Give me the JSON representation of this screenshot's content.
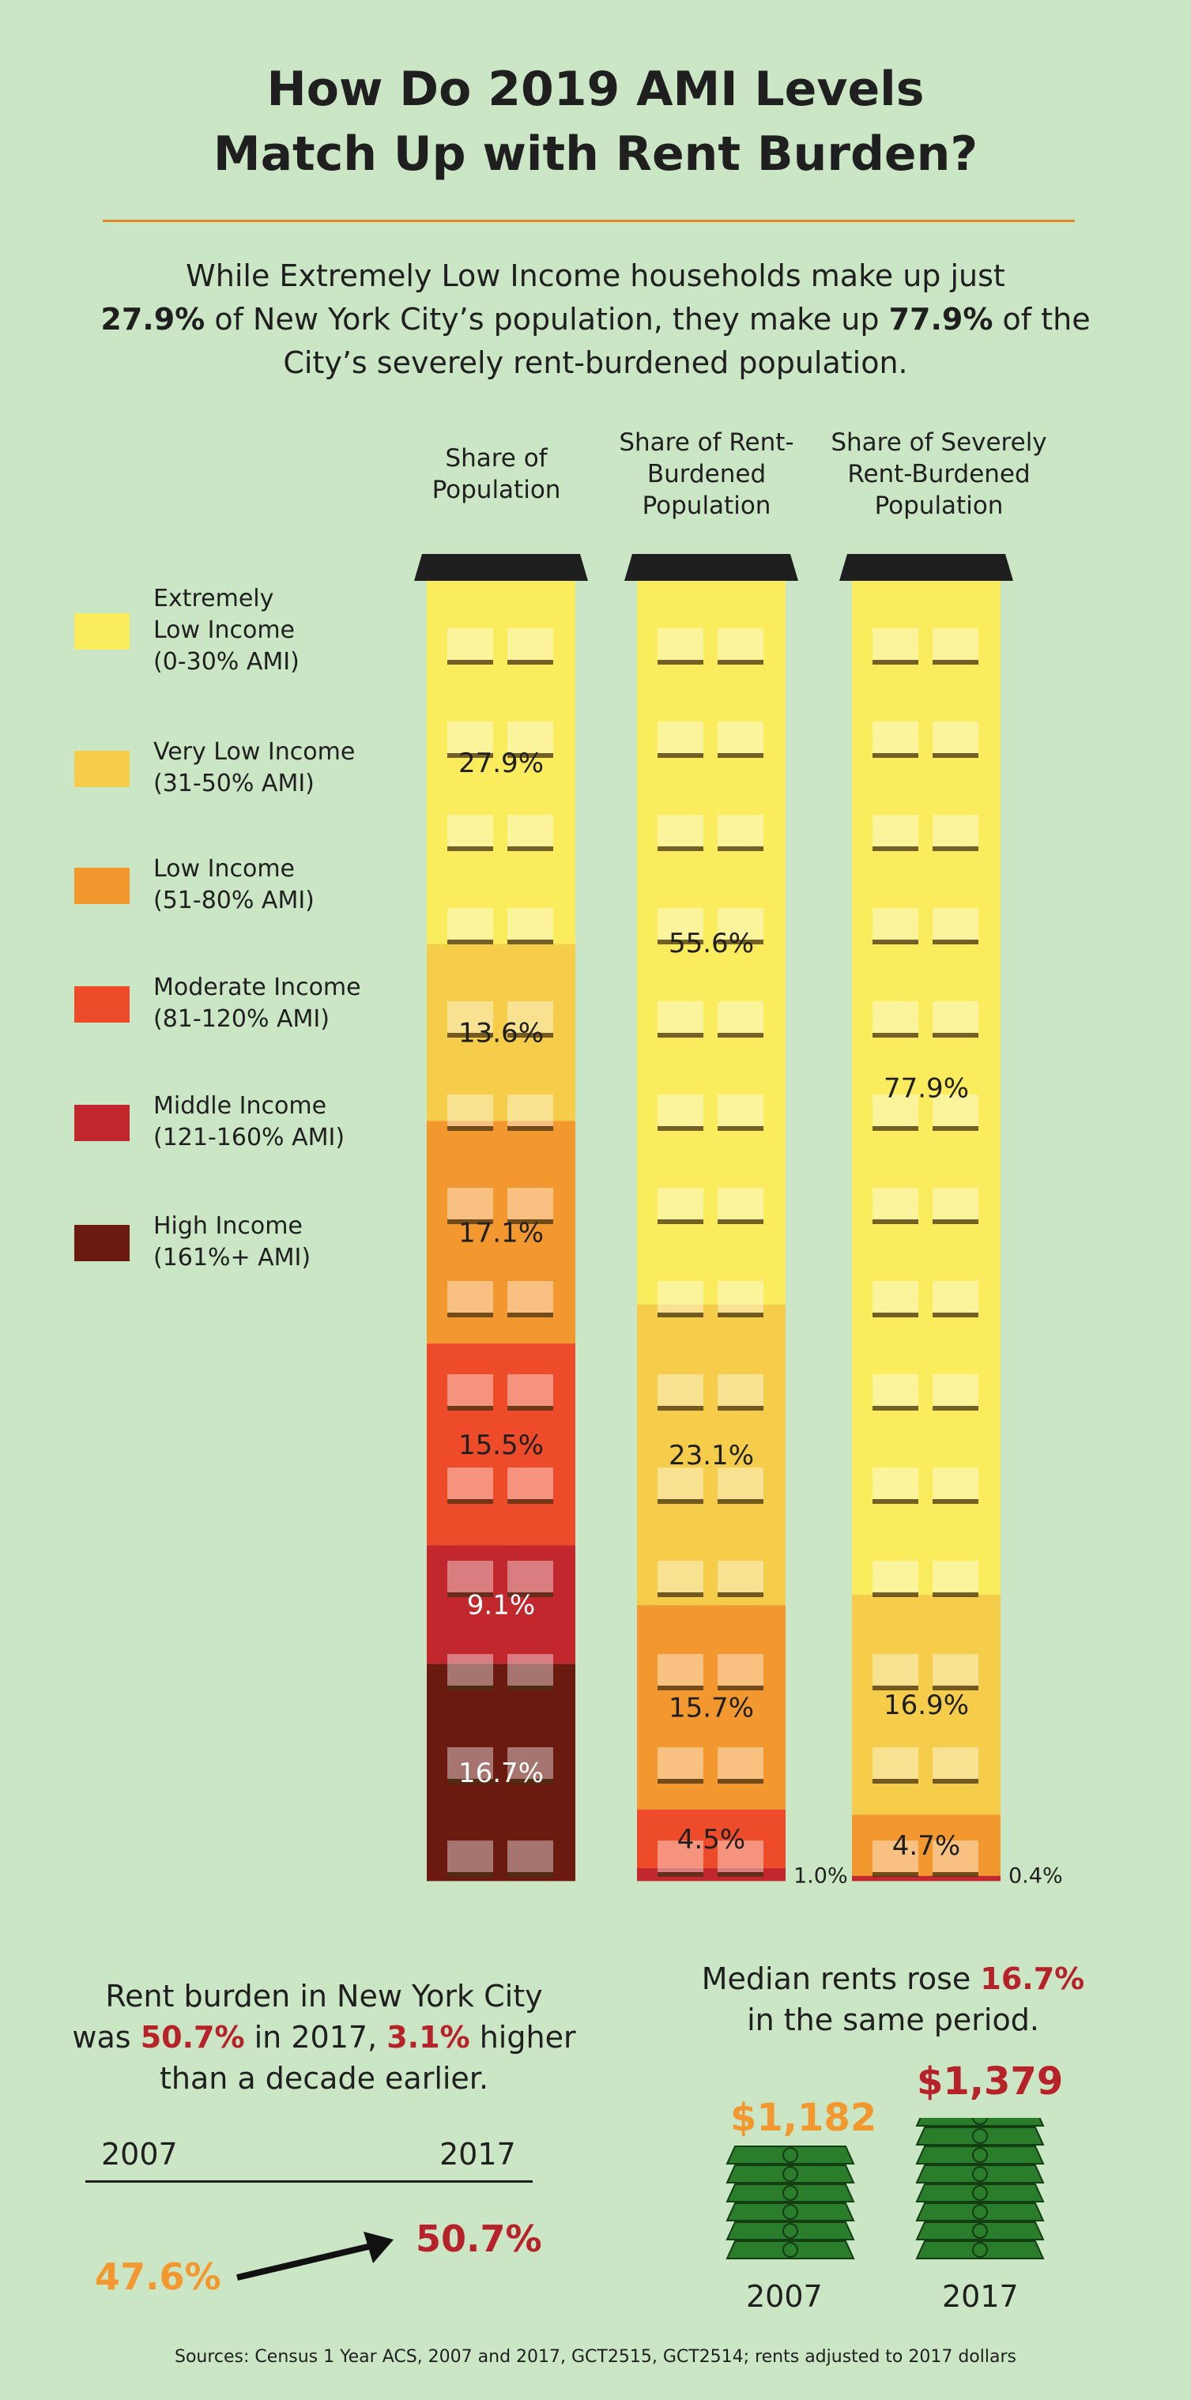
{
  "title": {
    "line1": "How Do 2019 AMI Levels",
    "line2": "Match Up with Rent Burden?"
  },
  "intro": {
    "part1": "While Extremely Low Income households make up just",
    "pct1": "27.9%",
    "part2": "of New York City’s population, they make up",
    "pct2": "77.9%",
    "part3": "of the City’s severely rent-burdened population."
  },
  "legend": [
    {
      "label": "Extremely\nLow Income\n(0-30% AMI)",
      "color": "#fbec5d"
    },
    {
      "label": "Very Low Income\n(31-50% AMI)",
      "color": "#f5cd4a"
    },
    {
      "label": "Low Income\n(51-80% AMI)",
      "color": "#f3982e"
    },
    {
      "label": "Moderate Income\n(81-120% AMI)",
      "color": "#ee4b2a"
    },
    {
      "label": "Middle Income\n(121-160% AMI)",
      "color": "#c1272d"
    },
    {
      "label": "High Income\n(161%+ AMI)",
      "color": "#6b1a10"
    }
  ],
  "column_headers": [
    "Share of\nPopulation",
    "Share of Rent-\nBurdened\nPopulation",
    "Share of Severely\nRent-Burdened\nPopulation"
  ],
  "chart_data": {
    "type": "bar",
    "stacked": true,
    "categories": [
      "Share of Population",
      "Share of Rent-Burdened Population",
      "Share of Severely Rent-Burdened Population"
    ],
    "series": [
      {
        "name": "Extremely Low Income (0-30% AMI)",
        "color": "#fbec5d",
        "values": [
          27.9,
          55.6,
          77.9
        ]
      },
      {
        "name": "Very Low Income (31-50% AMI)",
        "color": "#f5cd4a",
        "values": [
          13.6,
          23.1,
          16.9
        ]
      },
      {
        "name": "Low Income (51-80% AMI)",
        "color": "#f3982e",
        "values": [
          17.1,
          15.7,
          4.7
        ]
      },
      {
        "name": "Moderate Income (81-120% AMI)",
        "color": "#ee4b2a",
        "values": [
          15.5,
          4.5,
          null
        ]
      },
      {
        "name": "Middle Income (121-160% AMI)",
        "color": "#c1272d",
        "values": [
          9.1,
          1.0,
          0.4
        ]
      },
      {
        "name": "High Income (161%+ AMI)",
        "color": "#6b1a10",
        "values": [
          16.7,
          null,
          null
        ]
      }
    ],
    "labels": [
      [
        "27.9%",
        "55.6%",
        "77.9%"
      ],
      [
        "13.6%",
        "23.1%",
        "16.9%"
      ],
      [
        "17.1%",
        "15.7%",
        "4.7%"
      ],
      [
        "15.5%",
        "4.5%",
        ""
      ],
      [
        "9.1%",
        "1.0%",
        "0.4%"
      ],
      [
        "16.7%",
        "",
        ""
      ]
    ],
    "label_colors": [
      "#1f1f1f",
      "#1f1f1f",
      "#1f1f1f",
      "#1f1f1f",
      "#ffffff",
      "#ffffff"
    ],
    "ylim": [
      0,
      100
    ]
  },
  "rent_burden": {
    "line1": "Rent burden in New York City",
    "was": "was",
    "pct2017": "50.7%",
    "in2017": "in 2017,",
    "increase": "3.1%",
    "higher": "higher",
    "line3": "than a decade earlier.",
    "year_start": "2007",
    "year_end": "2017",
    "value_start": "47.6%",
    "value_end": "50.7%",
    "color_start": "#f3982e",
    "color_end": "#b7212a"
  },
  "median_rents": {
    "line1_a": "Median rents rose",
    "increase": "16.7%",
    "line2": "in the same period.",
    "rent_2007": "$1,182",
    "rent_2017": "$1,379",
    "year_2007": "2007",
    "year_2017": "2017",
    "stacks_2007": 6,
    "stacks_2017": 8,
    "color_2007": "#f3982e",
    "color_2017": "#b7212a",
    "bill_color": "#2a7d2a"
  },
  "sources": "Sources: Census 1 Year ACS, 2007 and 2017, GCT2515, GCT2514; rents adjusted to 2017 dollars"
}
